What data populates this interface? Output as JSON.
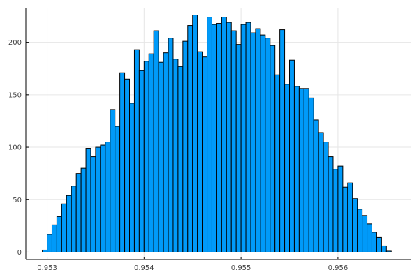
{
  "chart_data": {
    "type": "bar",
    "subtype": "histogram",
    "title": "",
    "xlabel": "",
    "ylabel": "",
    "bin_start": 0.95295,
    "bin_width": 5e-05,
    "counts": [
      2,
      17,
      26,
      34,
      46,
      54,
      63,
      75,
      80,
      99,
      91,
      100,
      102,
      105,
      136,
      120,
      171,
      165,
      142,
      193,
      173,
      182,
      189,
      211,
      181,
      190,
      204,
      184,
      177,
      201,
      216,
      226,
      191,
      186,
      224,
      217,
      218,
      224,
      219,
      211,
      198,
      217,
      219,
      209,
      213,
      207,
      204,
      197,
      169,
      212,
      160,
      183,
      158,
      156,
      156,
      147,
      126,
      114,
      105,
      91,
      79,
      82,
      62,
      66,
      51,
      41,
      35,
      27,
      19,
      14,
      6,
      1
    ],
    "xlim": [
      0.95278,
      0.95675
    ],
    "ylim": [
      -7,
      233
    ],
    "xticks": [
      0.953,
      0.954,
      0.955,
      0.956
    ],
    "xtick_labels": [
      "0.953",
      "0.954",
      "0.955",
      "0.956"
    ],
    "yticks": [
      0,
      50,
      100,
      150,
      200
    ],
    "ytick_labels": [
      "0",
      "50",
      "100",
      "150",
      "200"
    ],
    "grid": true,
    "legend": "none",
    "bar_color": "#009af9",
    "edge_color": "#000000",
    "grid_color": "#e6e6e6"
  }
}
